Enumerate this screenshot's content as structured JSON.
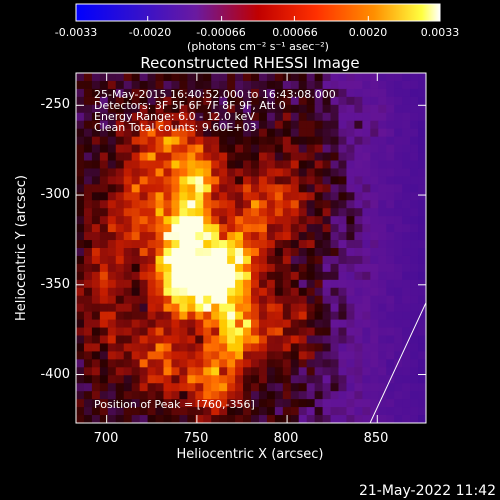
{
  "colorbar": {
    "ticks": [
      "-0.0033",
      "-0.0020",
      "-0.00066",
      "0.00066",
      "0.0020",
      "0.0033"
    ],
    "tick_values": [
      -0.0033,
      -0.002,
      -0.00066,
      0.00066,
      0.002,
      0.0033
    ],
    "range": [
      -0.0033,
      0.0033
    ],
    "unit_label": "(photons cm⁻² s⁻¹ asec⁻²)",
    "colormap": "blue-purple-red-orange-yellow-white"
  },
  "chart_data": {
    "type": "heatmap",
    "title": "Reconstructed RHESSI Image",
    "xlabel": "Heliocentric X (arcsec)",
    "ylabel": "Heliocentric Y (arcsec)",
    "xlim": [
      683,
      877
    ],
    "ylim": [
      -427,
      -232
    ],
    "x_ticks": [
      700,
      750,
      800,
      850
    ],
    "y_ticks": [
      -250,
      -300,
      -350,
      -400
    ],
    "annotations": [
      "25-May-2015 16:40:52.000 to 16:43:08.000",
      "Detectors: 3F 5F 6F 7F 8F 9F, Att 0",
      "Energy Range: 6.0 - 12.0 keV",
      "Clean    Total counts: 9.60E+03"
    ],
    "peak_label": "Position of Peak = [760,-356]",
    "peak": [
      760,
      -356
    ],
    "limb_line": [
      [
        846,
        -427
      ],
      [
        877,
        -360
      ]
    ],
    "sources": [
      {
        "x": 755,
        "y": -352,
        "sx": 16,
        "sy": 12,
        "amp": 1.0
      },
      {
        "x": 742,
        "y": -338,
        "sx": 10,
        "sy": 14,
        "amp": 0.9
      },
      {
        "x": 747,
        "y": -315,
        "sx": 8,
        "sy": 10,
        "amp": 0.8
      },
      {
        "x": 750,
        "y": -290,
        "sx": 9,
        "sy": 11,
        "amp": 0.7
      },
      {
        "x": 733,
        "y": -270,
        "sx": 14,
        "sy": 12,
        "amp": 0.45
      },
      {
        "x": 722,
        "y": -305,
        "sx": 12,
        "sy": 18,
        "amp": 0.5
      },
      {
        "x": 768,
        "y": -333,
        "sx": 12,
        "sy": 12,
        "amp": 0.7
      },
      {
        "x": 772,
        "y": -376,
        "sx": 10,
        "sy": 14,
        "amp": 0.65
      },
      {
        "x": 758,
        "y": -405,
        "sx": 10,
        "sy": 12,
        "amp": 0.55
      },
      {
        "x": 730,
        "y": -390,
        "sx": 12,
        "sy": 14,
        "amp": 0.45
      },
      {
        "x": 785,
        "y": -305,
        "sx": 12,
        "sy": 14,
        "amp": 0.4
      },
      {
        "x": 815,
        "y": -300,
        "sx": 16,
        "sy": 30,
        "amp": 0.25
      },
      {
        "x": 805,
        "y": -375,
        "sx": 14,
        "sy": 14,
        "amp": 0.3
      },
      {
        "x": 700,
        "y": -350,
        "sx": 10,
        "sy": 30,
        "amp": 0.3
      },
      {
        "x": 850,
        "y": -260,
        "sx": 12,
        "sy": 10,
        "amp": 0.25
      },
      {
        "x": 845,
        "y": -325,
        "sx": 12,
        "sy": 20,
        "amp": 0.15
      }
    ],
    "background_gradient": {
      "x_start": 800,
      "x_end": 877,
      "floor": -0.5
    }
  },
  "timestamp": "21-May-2022 11:42"
}
